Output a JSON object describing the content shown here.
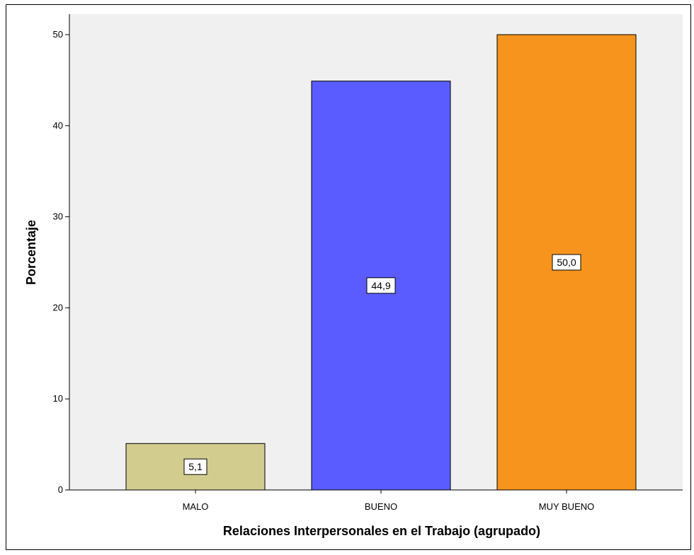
{
  "chart_data": {
    "type": "bar",
    "categories": [
      "MALO",
      "BUENO",
      "MUY BUENO"
    ],
    "values": [
      5.1,
      44.9,
      50.0
    ],
    "data_labels": [
      "5,1",
      "44,9",
      "50,0"
    ],
    "bar_colors": [
      "#d2cc8f",
      "#5a5cff",
      "#f7941d"
    ],
    "title": "",
    "xlabel": "Relaciones Interpersonales en el Trabajo (agrupado)",
    "ylabel": "Porcentaje",
    "ylim": [
      0,
      50
    ],
    "yticks": [
      0,
      10,
      20,
      30,
      40,
      50
    ],
    "grid": false,
    "legend": "none",
    "plot_background": "#f0f0f0"
  }
}
